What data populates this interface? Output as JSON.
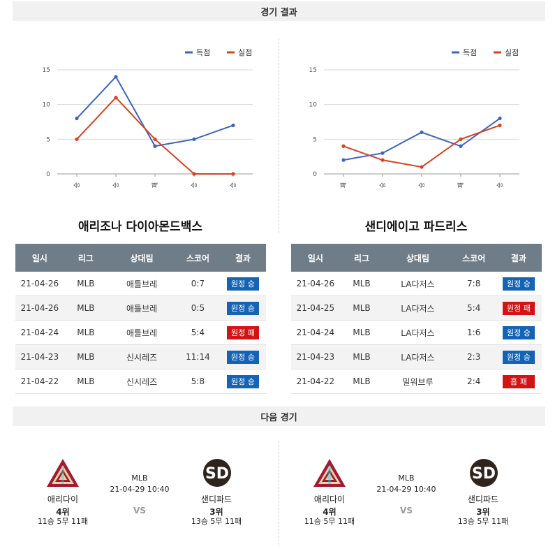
{
  "results_header": "경기 결과",
  "next_header": "다음 경기",
  "charts": [
    {
      "type": "line",
      "categories": [
        "승",
        "승",
        "패",
        "승",
        "승"
      ],
      "series": [
        {
          "name": "득점",
          "values": [
            8,
            14,
            4,
            5,
            7
          ],
          "color": "#3b63c4"
        },
        {
          "name": "실점",
          "values": [
            5,
            11,
            5,
            0,
            0
          ],
          "color": "#d9411e"
        }
      ],
      "yticks": [
        "0",
        "5",
        "10",
        "15"
      ],
      "ylim": [
        0,
        15
      ]
    },
    {
      "type": "line",
      "categories": [
        "패",
        "승",
        "승",
        "패",
        "승"
      ],
      "series": [
        {
          "name": "득점",
          "values": [
            2,
            3,
            6,
            4,
            8
          ],
          "color": "#3b63c4"
        },
        {
          "name": "실점",
          "values": [
            4,
            2,
            1,
            5,
            7
          ],
          "color": "#d9411e"
        }
      ],
      "yticks": [
        "0",
        "5",
        "10",
        "15"
      ],
      "ylim": [
        0,
        15
      ]
    }
  ],
  "teams": [
    {
      "title": "애리조나 다이아몬드백스",
      "columns": [
        "일시",
        "리그",
        "상대팀",
        "스코어",
        "결과"
      ],
      "rows": [
        {
          "date": "21-04-26",
          "league": "MLB",
          "opponent": "애틀브레",
          "score": "0:7",
          "result": "원정 승",
          "kind": "win"
        },
        {
          "date": "21-04-26",
          "league": "MLB",
          "opponent": "애틀브레",
          "score": "0:5",
          "result": "원정 승",
          "kind": "win"
        },
        {
          "date": "21-04-24",
          "league": "MLB",
          "opponent": "애틀브레",
          "score": "5:4",
          "result": "원정 패",
          "kind": "loss"
        },
        {
          "date": "21-04-23",
          "league": "MLB",
          "opponent": "신시레즈",
          "score": "11:14",
          "result": "원정 승",
          "kind": "win"
        },
        {
          "date": "21-04-22",
          "league": "MLB",
          "opponent": "신시레즈",
          "score": "5:8",
          "result": "원정 승",
          "kind": "win"
        }
      ]
    },
    {
      "title": "샌디에이고 파드리스",
      "columns": [
        "일시",
        "리그",
        "상대팀",
        "스코어",
        "결과"
      ],
      "rows": [
        {
          "date": "21-04-26",
          "league": "MLB",
          "opponent": "LA다저스",
          "score": "7:8",
          "result": "원정 승",
          "kind": "win"
        },
        {
          "date": "21-04-25",
          "league": "MLB",
          "opponent": "LA다저스",
          "score": "5:4",
          "result": "원정 패",
          "kind": "loss"
        },
        {
          "date": "21-04-24",
          "league": "MLB",
          "opponent": "LA다저스",
          "score": "1:6",
          "result": "원정 승",
          "kind": "win"
        },
        {
          "date": "21-04-23",
          "league": "MLB",
          "opponent": "LA다저스",
          "score": "2:3",
          "result": "원정 승",
          "kind": "win"
        },
        {
          "date": "21-04-22",
          "league": "MLB",
          "opponent": "밀워브루",
          "score": "2:4",
          "result": "홈 패",
          "kind": "loss"
        }
      ]
    }
  ],
  "next_games": [
    {
      "league": "MLB",
      "datetime": "21-04-29 10:40",
      "vs": "VS",
      "home": {
        "name": "애리다이",
        "rank": "4위",
        "record": "11승 5무 11패",
        "logo": "diamondbacks-logo"
      },
      "away": {
        "name": "샌디파드",
        "rank": "3위",
        "record": "13승 5무 11패",
        "logo": "padres-logo"
      }
    },
    {
      "league": "MLB",
      "datetime": "21-04-29 10:40",
      "vs": "VS",
      "home": {
        "name": "애리다이",
        "rank": "4위",
        "record": "11승 5무 11패",
        "logo": "diamondbacks-logo"
      },
      "away": {
        "name": "샌디파드",
        "rank": "3위",
        "record": "13승 5무 11패",
        "logo": "padres-logo"
      }
    }
  ]
}
